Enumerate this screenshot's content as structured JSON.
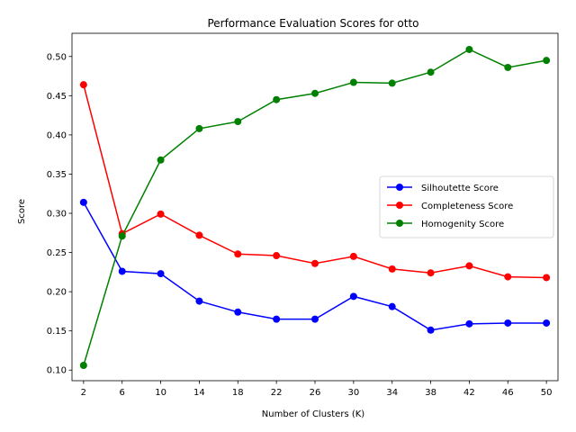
{
  "chart_data": {
    "type": "line",
    "title": "Performance Evaluation Scores for otto",
    "xlabel": "Number of Clusters (K)",
    "ylabel": "Score",
    "x": [
      2,
      6,
      10,
      14,
      18,
      22,
      26,
      30,
      34,
      38,
      42,
      46,
      50
    ],
    "xlim": [
      0.8,
      51.2
    ],
    "ylim": [
      0.0865,
      0.5296
    ],
    "yticks": [
      0.1,
      0.15,
      0.2,
      0.25,
      0.3,
      0.35,
      0.4,
      0.45,
      0.5
    ],
    "ytick_labels": [
      "0.10",
      "0.15",
      "0.20",
      "0.25",
      "0.30",
      "0.35",
      "0.40",
      "0.45",
      "0.50"
    ],
    "xtick_labels": [
      "2",
      "6",
      "10",
      "14",
      "18",
      "22",
      "26",
      "30",
      "34",
      "38",
      "42",
      "46",
      "50"
    ],
    "grid": false,
    "legend_position": "center-right",
    "series": [
      {
        "name": "Silhoutette Score",
        "color": "#0000ff",
        "values": [
          0.314,
          0.226,
          0.223,
          0.188,
          0.174,
          0.165,
          0.165,
          0.194,
          0.181,
          0.151,
          0.159,
          0.16,
          0.16
        ]
      },
      {
        "name": "Completeness Score",
        "color": "#ff0000",
        "values": [
          0.464,
          0.274,
          0.299,
          0.272,
          0.248,
          0.246,
          0.236,
          0.245,
          0.229,
          0.224,
          0.233,
          0.219,
          0.218
        ]
      },
      {
        "name": "Homogenity Score",
        "color": "#008000",
        "values": [
          0.106,
          0.271,
          0.368,
          0.408,
          0.417,
          0.445,
          0.453,
          0.467,
          0.466,
          0.48,
          0.509,
          0.486,
          0.495
        ]
      }
    ]
  }
}
